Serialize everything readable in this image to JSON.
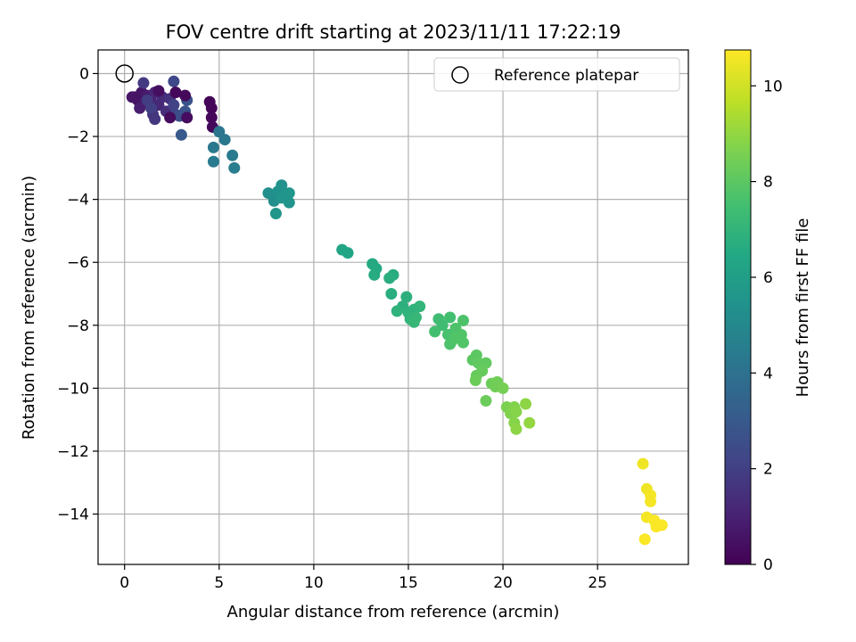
{
  "chart_data": {
    "type": "scatter",
    "title": "FOV centre drift starting at 2023/11/11 17:22:19",
    "xlabel": "Angular distance from reference (arcmin)",
    "ylabel": "Rotation from reference (arcmin)",
    "xlim": [
      -1.4,
      29.8
    ],
    "ylim": [
      -15.6,
      0.75
    ],
    "xticks": [
      0,
      5,
      10,
      15,
      20,
      25
    ],
    "yticks": [
      0,
      -2,
      -4,
      -6,
      -8,
      -10,
      -12,
      -14
    ],
    "grid": true,
    "colormap": "viridis",
    "colorbar": {
      "label": "Hours from first FF file",
      "range": [
        0,
        10.75
      ],
      "ticks": [
        0,
        2,
        4,
        6,
        8,
        10
      ]
    },
    "reference": {
      "label": "Reference platepar",
      "x": 0,
      "y": 0
    },
    "legend_position": "top-right",
    "points": [
      {
        "x": 0.5,
        "y": -0.75,
        "h": 0.4
      },
      {
        "x": 0.7,
        "y": -0.85,
        "h": 0.5
      },
      {
        "x": 0.9,
        "y": -0.6,
        "h": 0.6
      },
      {
        "x": 1.0,
        "y": -0.95,
        "h": 0.7
      },
      {
        "x": 1.2,
        "y": -0.7,
        "h": 0.8
      },
      {
        "x": 0.8,
        "y": -1.1,
        "h": 0.9
      },
      {
        "x": 1.4,
        "y": -0.85,
        "h": 1.0
      },
      {
        "x": 1.6,
        "y": -0.6,
        "h": 1.1
      },
      {
        "x": 1.8,
        "y": -1.0,
        "h": 1.2
      },
      {
        "x": 2.0,
        "y": -0.75,
        "h": 1.3
      },
      {
        "x": 2.2,
        "y": -1.2,
        "h": 1.4
      },
      {
        "x": 2.4,
        "y": -0.8,
        "h": 1.5
      },
      {
        "x": 1.5,
        "y": -1.3,
        "h": 1.6
      },
      {
        "x": 1.6,
        "y": -1.45,
        "h": 1.7
      },
      {
        "x": 1.0,
        "y": -0.3,
        "h": 1.8
      },
      {
        "x": 1.2,
        "y": -0.85,
        "h": 1.9
      },
      {
        "x": 1.4,
        "y": -1.1,
        "h": 2.0
      },
      {
        "x": 2.6,
        "y": -1.0,
        "h": 2.1
      },
      {
        "x": 2.7,
        "y": -1.3,
        "h": 2.2
      },
      {
        "x": 2.6,
        "y": -0.25,
        "h": 2.3
      },
      {
        "x": 2.9,
        "y": -1.35,
        "h": 2.5
      },
      {
        "x": 3.2,
        "y": -1.2,
        "h": 2.7
      },
      {
        "x": 3.3,
        "y": -0.85,
        "h": 2.8
      },
      {
        "x": 3.0,
        "y": -1.95,
        "h": 3.0
      },
      {
        "x": 2.4,
        "y": -1.4,
        "h": 0.3
      },
      {
        "x": 2.7,
        "y": -0.6,
        "h": 0.2
      },
      {
        "x": 3.2,
        "y": -0.7,
        "h": 0.25
      },
      {
        "x": 3.3,
        "y": -1.4,
        "h": 0.35
      },
      {
        "x": 1.8,
        "y": -0.55,
        "h": 0.4
      },
      {
        "x": 0.4,
        "y": -0.75,
        "h": 0.6
      },
      {
        "x": 4.5,
        "y": -0.9,
        "h": 0.1
      },
      {
        "x": 4.6,
        "y": -1.1,
        "h": 0.15
      },
      {
        "x": 4.6,
        "y": -1.4,
        "h": 0.2
      },
      {
        "x": 4.65,
        "y": -1.7,
        "h": 0.25
      },
      {
        "x": 5.0,
        "y": -1.85,
        "h": 4.2
      },
      {
        "x": 5.3,
        "y": -2.1,
        "h": 4.3
      },
      {
        "x": 4.7,
        "y": -2.35,
        "h": 4.3
      },
      {
        "x": 5.7,
        "y": -2.6,
        "h": 4.4
      },
      {
        "x": 4.7,
        "y": -2.8,
        "h": 4.4
      },
      {
        "x": 5.8,
        "y": -3.0,
        "h": 4.5
      },
      {
        "x": 7.6,
        "y": -3.8,
        "h": 5.3
      },
      {
        "x": 7.9,
        "y": -4.05,
        "h": 5.3
      },
      {
        "x": 8.1,
        "y": -3.75,
        "h": 5.4
      },
      {
        "x": 8.3,
        "y": -3.55,
        "h": 5.4
      },
      {
        "x": 8.5,
        "y": -3.9,
        "h": 5.5
      },
      {
        "x": 8.7,
        "y": -4.1,
        "h": 5.5
      },
      {
        "x": 8.7,
        "y": -3.8,
        "h": 5.6
      },
      {
        "x": 8.0,
        "y": -4.45,
        "h": 5.6
      },
      {
        "x": 8.3,
        "y": -3.95,
        "h": 5.5
      },
      {
        "x": 11.5,
        "y": -5.6,
        "h": 6.3
      },
      {
        "x": 11.8,
        "y": -5.7,
        "h": 6.3
      },
      {
        "x": 13.1,
        "y": -6.05,
        "h": 6.5
      },
      {
        "x": 13.3,
        "y": -6.2,
        "h": 6.5
      },
      {
        "x": 13.2,
        "y": -6.4,
        "h": 6.6
      },
      {
        "x": 14.2,
        "y": -6.4,
        "h": 6.6
      },
      {
        "x": 14.0,
        "y": -6.5,
        "h": 6.7
      },
      {
        "x": 14.1,
        "y": -7.0,
        "h": 6.7
      },
      {
        "x": 14.9,
        "y": -7.1,
        "h": 6.8
      },
      {
        "x": 14.7,
        "y": -7.4,
        "h": 6.8
      },
      {
        "x": 15.0,
        "y": -7.6,
        "h": 6.9
      },
      {
        "x": 15.3,
        "y": -7.5,
        "h": 6.9
      },
      {
        "x": 15.1,
        "y": -7.8,
        "h": 7.0
      },
      {
        "x": 15.6,
        "y": -7.4,
        "h": 7.0
      },
      {
        "x": 15.4,
        "y": -7.75,
        "h": 7.1
      },
      {
        "x": 14.4,
        "y": -7.55,
        "h": 6.9
      },
      {
        "x": 15.3,
        "y": -7.9,
        "h": 7.1
      },
      {
        "x": 16.6,
        "y": -7.8,
        "h": 7.4
      },
      {
        "x": 16.8,
        "y": -8.0,
        "h": 7.4
      },
      {
        "x": 16.4,
        "y": -8.2,
        "h": 7.5
      },
      {
        "x": 17.2,
        "y": -7.75,
        "h": 7.5
      },
      {
        "x": 17.1,
        "y": -8.3,
        "h": 7.6
      },
      {
        "x": 17.3,
        "y": -8.5,
        "h": 7.6
      },
      {
        "x": 17.5,
        "y": -8.1,
        "h": 7.7
      },
      {
        "x": 17.9,
        "y": -7.85,
        "h": 7.7
      },
      {
        "x": 17.8,
        "y": -8.3,
        "h": 7.8
      },
      {
        "x": 17.9,
        "y": -8.55,
        "h": 7.8
      },
      {
        "x": 17.2,
        "y": -8.6,
        "h": 7.7
      },
      {
        "x": 17.5,
        "y": -8.4,
        "h": 7.8
      },
      {
        "x": 18.6,
        "y": -8.95,
        "h": 8.0
      },
      {
        "x": 18.4,
        "y": -9.1,
        "h": 8.0
      },
      {
        "x": 18.7,
        "y": -9.2,
        "h": 8.1
      },
      {
        "x": 19.1,
        "y": -9.2,
        "h": 8.1
      },
      {
        "x": 18.9,
        "y": -9.45,
        "h": 8.2
      },
      {
        "x": 18.6,
        "y": -9.6,
        "h": 8.2
      },
      {
        "x": 18.55,
        "y": -9.75,
        "h": 8.3
      },
      {
        "x": 19.4,
        "y": -9.85,
        "h": 8.3
      },
      {
        "x": 19.7,
        "y": -9.8,
        "h": 8.4
      },
      {
        "x": 19.6,
        "y": -9.95,
        "h": 8.4
      },
      {
        "x": 20.0,
        "y": -10.0,
        "h": 8.5
      },
      {
        "x": 19.1,
        "y": -10.4,
        "h": 8.3
      },
      {
        "x": 20.2,
        "y": -10.6,
        "h": 8.6
      },
      {
        "x": 20.4,
        "y": -10.8,
        "h": 8.7
      },
      {
        "x": 20.6,
        "y": -10.6,
        "h": 8.7
      },
      {
        "x": 20.7,
        "y": -10.75,
        "h": 8.8
      },
      {
        "x": 20.6,
        "y": -11.1,
        "h": 8.8
      },
      {
        "x": 20.7,
        "y": -11.3,
        "h": 8.9
      },
      {
        "x": 21.2,
        "y": -10.5,
        "h": 8.9
      },
      {
        "x": 21.4,
        "y": -11.1,
        "h": 9.0
      },
      {
        "x": 27.4,
        "y": -12.4,
        "h": 10.5
      },
      {
        "x": 27.6,
        "y": -13.2,
        "h": 10.5
      },
      {
        "x": 27.8,
        "y": -13.4,
        "h": 10.6
      },
      {
        "x": 27.8,
        "y": -13.6,
        "h": 10.6
      },
      {
        "x": 27.6,
        "y": -14.1,
        "h": 10.6
      },
      {
        "x": 28.0,
        "y": -14.2,
        "h": 10.7
      },
      {
        "x": 28.1,
        "y": -14.4,
        "h": 10.7
      },
      {
        "x": 28.4,
        "y": -14.35,
        "h": 10.7
      },
      {
        "x": 27.5,
        "y": -14.8,
        "h": 10.7
      }
    ]
  }
}
